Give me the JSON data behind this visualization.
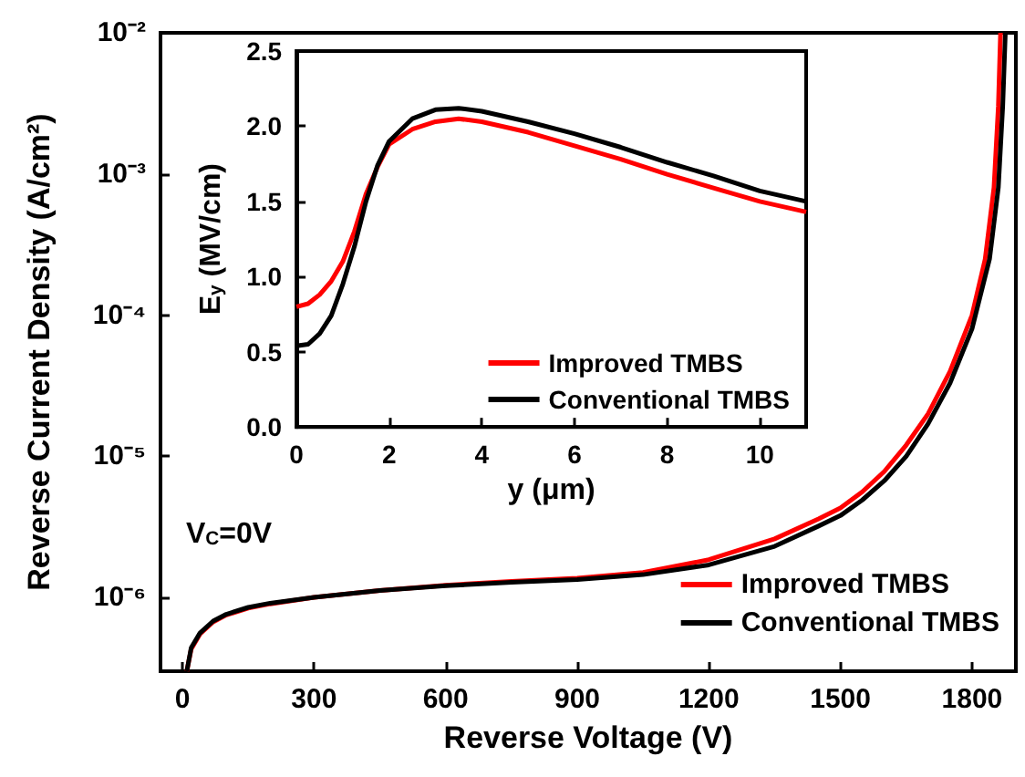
{
  "chart_data": [
    {
      "type": "line",
      "xlabel": "Reverse Voltage (V)",
      "ylabel": "Reverse Current Density (A/cm²)",
      "log": "y",
      "xlim": [
        -50,
        1900
      ],
      "xticks": [
        0,
        300,
        600,
        900,
        1200,
        1500,
        1800
      ],
      "ylim": [
        3e-07,
        0.01
      ],
      "yticks": [
        {
          "value": 1e-06,
          "label": "10⁻⁶"
        },
        {
          "value": 1e-05,
          "label": "10⁻⁵"
        },
        {
          "value": 0.0001,
          "label": "10⁻⁴"
        },
        {
          "value": 0.001,
          "label": "10⁻³"
        },
        {
          "value": 0.01,
          "label": "10⁻²"
        }
      ],
      "legend": "bottom right",
      "annotations": [
        "V$_{C}$=0V"
      ],
      "series": [
        {
          "name": "Improved TMBS",
          "color": "#ff0000",
          "x": [
            10,
            20,
            40,
            70,
            100,
            150,
            200,
            300,
            450,
            600,
            750,
            900,
            1050,
            1200,
            1350,
            1450,
            1500,
            1550,
            1600,
            1650,
            1700,
            1750,
            1800,
            1830,
            1850,
            1860,
            1865
          ],
          "values": [
            3e-07,
            4.3e-07,
            5.5e-07,
            6.7e-07,
            7.5e-07,
            8.4e-07,
            9e-07,
            1e-06,
            1.12e-06,
            1.22e-06,
            1.3e-06,
            1.37e-06,
            1.5e-06,
            1.85e-06,
            2.6e-06,
            3.6e-06,
            4.3e-06,
            5.6e-06,
            7.8e-06,
            1.2e-05,
            2e-05,
            4e-05,
            0.0001,
            0.00025,
            0.0008,
            0.003,
            0.01
          ]
        },
        {
          "name": "Conventional TMBS",
          "color": "#000000",
          "x": [
            10,
            20,
            40,
            70,
            100,
            150,
            200,
            300,
            450,
            600,
            750,
            900,
            1050,
            1200,
            1350,
            1450,
            1500,
            1550,
            1600,
            1650,
            1700,
            1750,
            1800,
            1840,
            1860,
            1870,
            1876
          ],
          "values": [
            3e-07,
            4.4e-07,
            5.6e-07,
            6.8e-07,
            7.6e-07,
            8.5e-07,
            9.1e-07,
            1e-06,
            1.12e-06,
            1.21e-06,
            1.28e-06,
            1.34e-06,
            1.45e-06,
            1.7e-06,
            2.3e-06,
            3.2e-06,
            3.8e-06,
            4.9e-06,
            6.7e-06,
            1e-05,
            1.7e-05,
            3.3e-05,
            8e-05,
            0.00025,
            0.0008,
            0.003,
            0.01
          ]
        }
      ]
    },
    {
      "type": "line",
      "xlabel": "y (μm)",
      "ylabel": "E$_{y}$ (MV/cm)",
      "xlim": [
        0,
        11
      ],
      "xticks": [
        0,
        2,
        4,
        6,
        8,
        10
      ],
      "ylim": [
        0,
        2.5
      ],
      "yticks": [
        {
          "value": 0,
          "label": "0.0"
        },
        0.5,
        {
          "value": 1,
          "label": "1.0"
        },
        1.5,
        {
          "value": 2,
          "label": "2.0"
        },
        2.5
      ],
      "legend": "bottom right",
      "series": [
        {
          "name": "Improved TMBS",
          "color": "#ff0000",
          "x": [
            0,
            0.25,
            0.5,
            0.75,
            1,
            1.25,
            1.5,
            1.75,
            2,
            2.5,
            3,
            3.5,
            4,
            5,
            6,
            7,
            8,
            9,
            10,
            11
          ],
          "values": [
            0.8,
            0.82,
            0.88,
            0.97,
            1.1,
            1.3,
            1.55,
            1.73,
            1.88,
            1.98,
            2.03,
            2.05,
            2.03,
            1.96,
            1.87,
            1.78,
            1.68,
            1.59,
            1.5,
            1.43
          ]
        },
        {
          "name": "Conventional TMBS",
          "color": "#000000",
          "x": [
            0,
            0.25,
            0.5,
            0.75,
            1,
            1.25,
            1.5,
            1.75,
            2,
            2.5,
            3,
            3.5,
            4,
            5,
            6,
            7,
            8,
            9,
            10,
            11
          ],
          "values": [
            0.54,
            0.55,
            0.62,
            0.74,
            0.95,
            1.2,
            1.5,
            1.74,
            1.9,
            2.05,
            2.11,
            2.12,
            2.1,
            2.03,
            1.95,
            1.86,
            1.76,
            1.67,
            1.57,
            1.5
          ]
        }
      ]
    }
  ]
}
